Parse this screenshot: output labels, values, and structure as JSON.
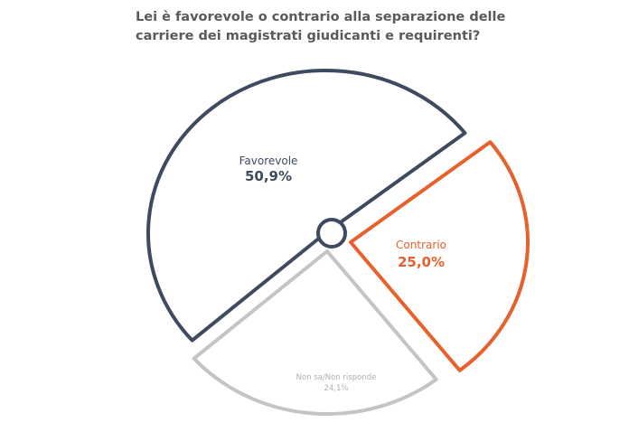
{
  "chart_data": {
    "type": "pie",
    "title": "Lei è favorevole o contrario alla separazione delle carriere dei magistrati giudicanti e requirenti?",
    "slices": [
      {
        "label": "Favorevole",
        "value": 50.9,
        "value_label": "50,9%",
        "color": "#3d4a5f"
      },
      {
        "label": "Contrario",
        "value": 25.0,
        "value_label": "25,0%",
        "color": "#e8612c"
      },
      {
        "label": "Non sa/Non risponde",
        "value": 24.1,
        "value_label": "24,1%",
        "color": "#c4c4c4"
      }
    ],
    "style": "exploded outline pie with center hub",
    "legend": "none"
  }
}
